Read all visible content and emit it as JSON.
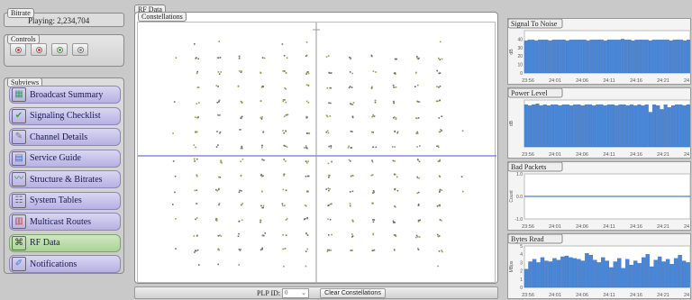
{
  "status": {
    "label": "Bitrate",
    "text": "Playing: 2,234,704"
  },
  "controls": {
    "label": "Controls"
  },
  "subviews": {
    "label": "Subviews",
    "items": [
      {
        "label": "Broadcast Summary",
        "icon": "chart-icon",
        "active": false
      },
      {
        "label": "Signaling Checklist",
        "icon": "checkmark-icon",
        "active": false
      },
      {
        "label": "Channel Details",
        "icon": "tools-icon",
        "active": false
      },
      {
        "label": "Service Guide",
        "icon": "book-icon",
        "active": false
      },
      {
        "label": "Structure & Bitrates",
        "icon": "graph-icon",
        "active": false
      },
      {
        "label": "System Tables",
        "icon": "table-icon",
        "active": false
      },
      {
        "label": "Multicast Routes",
        "icon": "grid-icon",
        "active": false
      },
      {
        "label": "RF Data",
        "icon": "network-icon",
        "active": true
      },
      {
        "label": "Notifications",
        "icon": "pencil-icon",
        "active": false
      }
    ]
  },
  "rf": {
    "label": "RF Data",
    "constellations_label": "Constellations"
  },
  "bottom": {
    "plp_label": "PLP ID:",
    "plp_value": "0",
    "clear_label": "Clear Constellations"
  },
  "panels": {
    "snr": {
      "title": "Signal To Noise",
      "ylabel": "dB",
      "yticks": [
        "40",
        "30",
        "20",
        "10",
        "0"
      ],
      "xticks": [
        "23:56",
        "24:01",
        "24:06",
        "24:11",
        "24:16",
        "24:21",
        "24"
      ]
    },
    "power": {
      "title": "Power Level",
      "ylabel": "dB",
      "xticks": [
        "23:56",
        "24:01",
        "24:06",
        "24:11",
        "24:16",
        "24:21",
        "24"
      ]
    },
    "bad": {
      "title": "Bad Packets",
      "ylabel": "Count",
      "yticks": [
        "1.0",
        "0.0",
        "-1.0"
      ],
      "xticks": [
        "23:56",
        "24:01",
        "24:06",
        "24:11",
        "24:16",
        "24:21",
        "24"
      ]
    },
    "bytes": {
      "title": "Bytes Read",
      "ylabel": "MBps",
      "yticks": [
        "5",
        "4",
        "3",
        "2",
        "1",
        "0"
      ],
      "xticks": [
        "23:56",
        "24:01",
        "24:06",
        "24:11",
        "24:16",
        "24:21",
        "24"
      ]
    }
  },
  "chart_data": [
    {
      "type": "bar",
      "title": "Signal To Noise",
      "ylabel": "dB",
      "ylim": [
        0,
        50
      ],
      "values": [
        38,
        39,
        39,
        38,
        39,
        39,
        39,
        38,
        39,
        39,
        39,
        39,
        38,
        39,
        39,
        39,
        39,
        39,
        38,
        39,
        39,
        39,
        39,
        38,
        39,
        39,
        39,
        39,
        40,
        39,
        39,
        38,
        39,
        39,
        39,
        39,
        38,
        39,
        39,
        39,
        39,
        39,
        38,
        39,
        39,
        39,
        38,
        39
      ]
    },
    {
      "type": "bar",
      "title": "Power Level",
      "ylabel": "dB",
      "ylim": [
        0,
        50
      ],
      "values": [
        45,
        44,
        45,
        46,
        44,
        45,
        44,
        45,
        45,
        44,
        45,
        45,
        44,
        45,
        45,
        44,
        45,
        45,
        44,
        45,
        45,
        44,
        45,
        45,
        44,
        45,
        45,
        44,
        45,
        44,
        45,
        44,
        45,
        37,
        45,
        44,
        40,
        45,
        42,
        44,
        45,
        45,
        44,
        45
      ]
    },
    {
      "type": "line",
      "title": "Bad Packets",
      "ylabel": "Count",
      "ylim": [
        -1,
        1
      ],
      "values": [
        0,
        0,
        0,
        0,
        0,
        0,
        0,
        0,
        0,
        0,
        0,
        0,
        0,
        0,
        0,
        0,
        0,
        0,
        0,
        0
      ]
    },
    {
      "type": "bar",
      "title": "Bytes Read",
      "ylabel": "MBps",
      "ylim": [
        0,
        5
      ],
      "values": [
        2.2,
        3.1,
        3.4,
        3.0,
        3.6,
        3.2,
        3.1,
        3.5,
        3.3,
        3.7,
        3.8,
        3.6,
        3.5,
        3.4,
        3.2,
        4.1,
        3.9,
        3.3,
        3.0,
        3.6,
        3.2,
        2.4,
        3.1,
        3.5,
        2.3,
        3.4,
        2.7,
        3.2,
        2.9,
        3.6,
        4.0,
        2.5,
        3.3,
        3.7,
        3.1,
        3.4,
        2.8,
        3.5,
        3.9,
        3.2,
        3.0
      ]
    }
  ]
}
